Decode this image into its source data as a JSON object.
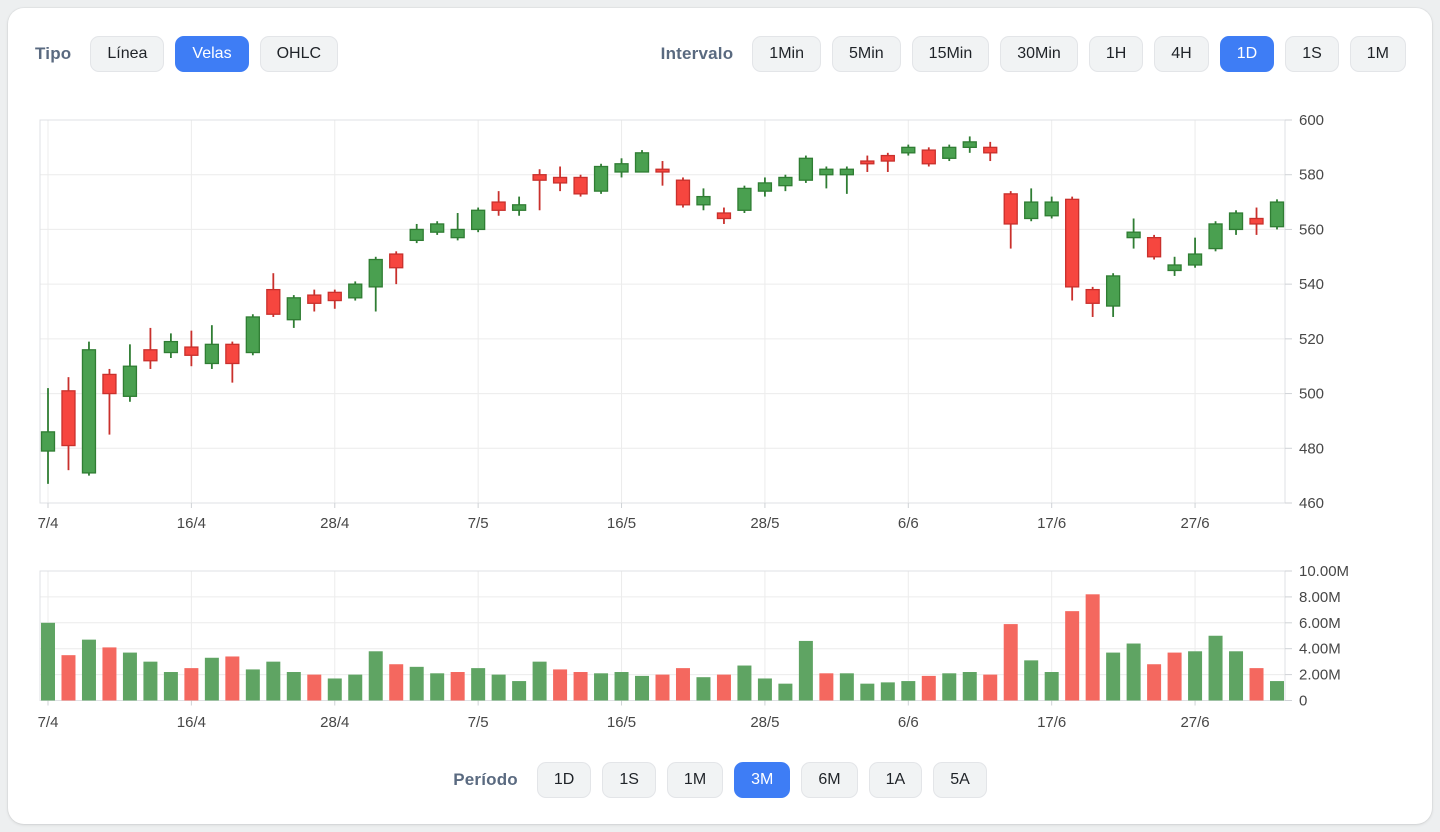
{
  "colors": {
    "accent": "#3e7df5",
    "up_fill": "#4AA050",
    "up_border": "#2F7D33",
    "down_fill": "#F6463F",
    "down_border": "#C9302C",
    "volume_up": "#5FA463",
    "volume_down": "#F4685F",
    "grid_line": "#ececec",
    "plot_border": "#dfe1e4",
    "axis_text": "#474747"
  },
  "type_selector": {
    "label": "Tipo",
    "options": [
      "Línea",
      "Velas",
      "OHLC"
    ],
    "active": "Velas"
  },
  "interval_selector": {
    "label": "Intervalo",
    "options": [
      "1Min",
      "5Min",
      "15Min",
      "30Min",
      "1H",
      "4H",
      "1D",
      "1S",
      "1M"
    ],
    "active": "1D"
  },
  "period_selector": {
    "label": "Período",
    "options": [
      "1D",
      "1S",
      "1M",
      "3M",
      "6M",
      "1A",
      "5A"
    ],
    "active": "3M"
  },
  "chart_data": [
    {
      "type": "candlestick",
      "title": "",
      "ylim": [
        460,
        600
      ],
      "y_ticks": [
        600,
        580,
        560,
        540,
        520,
        500,
        480,
        460
      ],
      "x_tick_labels": [
        "7/4",
        "16/4",
        "28/4",
        "7/5",
        "16/5",
        "28/5",
        "6/6",
        "17/6",
        "27/6"
      ],
      "x_tick_indices": [
        0,
        7,
        14,
        21,
        28,
        35,
        42,
        49,
        56
      ],
      "grid": true,
      "candles_format": [
        "open",
        "high",
        "low",
        "close"
      ],
      "candles": [
        [
          479,
          502,
          467,
          486
        ],
        [
          501,
          506,
          472,
          481
        ],
        [
          471,
          519,
          470,
          516
        ],
        [
          507,
          509,
          485,
          500
        ],
        [
          499,
          518,
          497,
          510
        ],
        [
          516,
          524,
          509,
          512
        ],
        [
          515,
          522,
          513,
          519
        ],
        [
          517,
          523,
          510,
          514
        ],
        [
          511,
          525,
          509,
          518
        ],
        [
          518,
          519,
          504,
          511
        ],
        [
          515,
          529,
          514,
          528
        ],
        [
          538,
          544,
          528,
          529
        ],
        [
          527,
          536,
          524,
          535
        ],
        [
          536,
          538,
          530,
          533
        ],
        [
          537,
          538,
          531,
          534
        ],
        [
          535,
          541,
          534,
          540
        ],
        [
          539,
          550,
          530,
          549
        ],
        [
          551,
          552,
          540,
          546
        ],
        [
          556,
          562,
          555,
          560
        ],
        [
          559,
          563,
          558,
          562
        ],
        [
          557,
          566,
          556,
          560
        ],
        [
          560,
          568,
          559,
          567
        ],
        [
          570,
          574,
          565,
          567
        ],
        [
          567,
          572,
          565,
          569
        ],
        [
          580,
          582,
          567,
          578
        ],
        [
          579,
          583,
          574,
          577
        ],
        [
          579,
          580,
          572,
          573
        ],
        [
          574,
          584,
          573,
          583
        ],
        [
          581,
          586,
          579,
          584
        ],
        [
          581,
          589,
          581,
          588
        ],
        [
          582,
          585,
          576,
          581
        ],
        [
          578,
          579,
          568,
          569
        ],
        [
          569,
          575,
          567,
          572
        ],
        [
          566,
          568,
          562,
          564
        ],
        [
          567,
          576,
          566,
          575
        ],
        [
          574,
          579,
          572,
          577
        ],
        [
          576,
          580,
          574,
          579
        ],
        [
          578,
          587,
          577,
          586
        ],
        [
          580,
          583,
          575,
          582
        ],
        [
          580,
          583,
          573,
          582
        ],
        [
          585,
          587,
          581,
          584
        ],
        [
          587,
          588,
          581,
          585
        ],
        [
          588,
          591,
          587,
          590
        ],
        [
          589,
          590,
          583,
          584
        ],
        [
          586,
          591,
          585,
          590
        ],
        [
          590,
          594,
          588,
          592
        ],
        [
          590,
          592,
          585,
          588
        ],
        [
          573,
          574,
          553,
          562
        ],
        [
          564,
          575,
          563,
          570
        ],
        [
          565,
          572,
          564,
          570
        ],
        [
          571,
          572,
          534,
          539
        ],
        [
          538,
          539,
          528,
          533
        ],
        [
          532,
          544,
          528,
          543
        ],
        [
          557,
          564,
          553,
          559
        ],
        [
          557,
          558,
          549,
          550
        ],
        [
          545,
          550,
          543,
          547
        ],
        [
          547,
          557,
          546,
          551
        ],
        [
          553,
          563,
          552,
          562
        ],
        [
          560,
          567,
          558,
          566
        ],
        [
          564,
          568,
          558,
          562
        ],
        [
          561,
          571,
          560,
          570
        ]
      ]
    },
    {
      "type": "bar",
      "name": "volume",
      "unit": "M",
      "ylim_m": [
        0,
        10
      ],
      "y_tick_values_m": [
        10,
        8,
        6,
        4,
        2,
        0
      ],
      "y_tick_labels": [
        "10.00M",
        "8.00M",
        "6.00M",
        "4.00M",
        "2.00M",
        "0"
      ],
      "x_tick_labels": [
        "7/4",
        "16/4",
        "28/4",
        "7/5",
        "16/5",
        "28/5",
        "6/6",
        "17/6",
        "27/6"
      ],
      "x_tick_indices": [
        0,
        7,
        14,
        21,
        28,
        35,
        42,
        49,
        56
      ],
      "values_m": [
        6.0,
        3.5,
        4.7,
        4.1,
        3.7,
        3.0,
        2.2,
        2.5,
        3.3,
        3.4,
        2.4,
        3.0,
        2.2,
        2.0,
        1.7,
        2.0,
        3.8,
        2.8,
        2.6,
        2.1,
        2.2,
        2.5,
        2.0,
        1.5,
        3.0,
        2.4,
        2.2,
        2.1,
        2.2,
        1.9,
        2.0,
        2.5,
        1.8,
        2.0,
        2.7,
        1.7,
        1.3,
        4.6,
        2.1,
        2.1,
        1.3,
        1.4,
        1.5,
        1.9,
        2.1,
        2.2,
        2.0,
        5.9,
        3.1,
        2.2,
        6.9,
        8.2,
        3.7,
        4.4,
        2.8,
        3.7,
        3.8,
        5.0,
        3.8,
        2.5,
        1.5
      ],
      "directions": [
        "up",
        "down",
        "up",
        "down",
        "up",
        "up",
        "up",
        "down",
        "up",
        "down",
        "up",
        "up",
        "up",
        "down",
        "up",
        "up",
        "up",
        "down",
        "up",
        "up",
        "down",
        "up",
        "up",
        "up",
        "up",
        "down",
        "down",
        "up",
        "up",
        "up",
        "down",
        "down",
        "up",
        "down",
        "up",
        "up",
        "up",
        "up",
        "down",
        "up",
        "up",
        "up",
        "up",
        "down",
        "up",
        "up",
        "down",
        "down",
        "up",
        "up",
        "down",
        "down",
        "up",
        "up",
        "down",
        "down",
        "up",
        "up",
        "up",
        "down",
        "up"
      ]
    }
  ]
}
